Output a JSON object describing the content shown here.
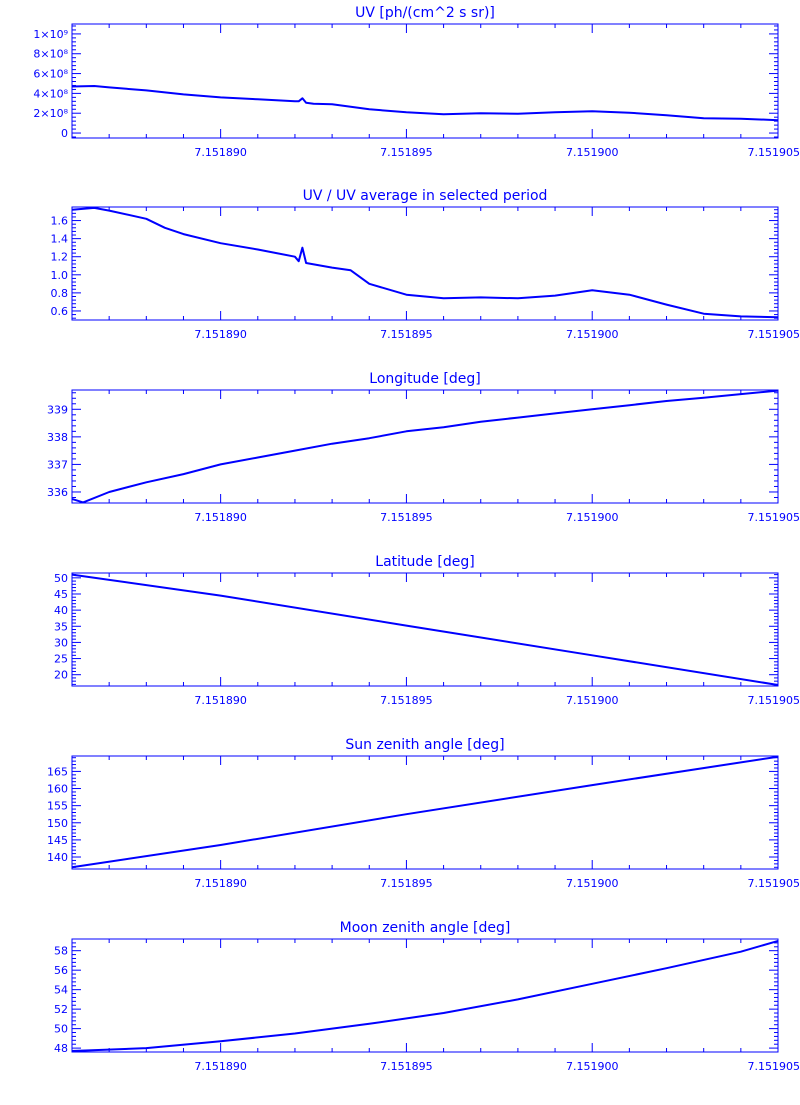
{
  "chart_data": [
    {
      "type": "line",
      "title": "UV [ph/(cm^2 s sr)]",
      "xlabel": "",
      "ylabel": "",
      "xlim": [
        7.151886,
        7.151905
      ],
      "ylim": [
        -50000000.0,
        1100000000.0
      ],
      "x_ticks": [
        7.15189,
        7.151895,
        7.1519,
        7.151905
      ],
      "x_tick_labels": [
        "7.151890",
        "7.151895",
        "7.151900",
        "7.151905"
      ],
      "y_ticks": [
        0,
        200000000.0,
        400000000.0,
        600000000.0,
        800000000.0,
        1000000000.0
      ],
      "y_tick_labels": [
        "0",
        "2×10⁸",
        "4×10⁸",
        "6×10⁸",
        "8×10⁸",
        "1×10⁹"
      ],
      "series": [
        {
          "x": [
            7.151886,
            7.1518866,
            7.151887,
            7.151888,
            7.151889,
            7.15189,
            7.151891,
            7.151892,
            7.1518921,
            7.1518922,
            7.1518923,
            7.1518925,
            7.151893,
            7.151894,
            7.151895,
            7.151896,
            7.151897,
            7.151898,
            7.151899,
            7.1519,
            7.151901,
            7.151902,
            7.151903,
            7.151904,
            7.151905
          ],
          "y": [
            470000000.0,
            475000000.0,
            460000000.0,
            430000000.0,
            390000000.0,
            360000000.0,
            340000000.0,
            320000000.0,
            320000000.0,
            350000000.0,
            305000000.0,
            295000000.0,
            290000000.0,
            240000000.0,
            210000000.0,
            190000000.0,
            200000000.0,
            195000000.0,
            210000000.0,
            220000000.0,
            205000000.0,
            180000000.0,
            150000000.0,
            145000000.0,
            130000000.0
          ]
        }
      ]
    },
    {
      "type": "line",
      "title": "UV / UV average in selected period",
      "xlabel": "",
      "ylabel": "",
      "xlim": [
        7.151886,
        7.151905
      ],
      "ylim": [
        0.5,
        1.75
      ],
      "x_ticks": [
        7.15189,
        7.151895,
        7.1519,
        7.151905
      ],
      "x_tick_labels": [
        "7.151890",
        "7.151895",
        "7.151900",
        "7.151905"
      ],
      "y_ticks": [
        0.6,
        0.8,
        1.0,
        1.2,
        1.4,
        1.6
      ],
      "y_tick_labels": [
        "0.6",
        "0.8",
        "1.0",
        "1.2",
        "1.4",
        "1.6"
      ],
      "series": [
        {
          "x": [
            7.151886,
            7.1518866,
            7.151887,
            7.151888,
            7.1518885,
            7.151889,
            7.15189,
            7.151891,
            7.151892,
            7.1518921,
            7.1518922,
            7.1518923,
            7.151893,
            7.1518935,
            7.151894,
            7.151895,
            7.151896,
            7.151897,
            7.151898,
            7.151899,
            7.1519,
            7.151901,
            7.151902,
            7.151903,
            7.151904,
            7.151905
          ],
          "y": [
            1.72,
            1.74,
            1.71,
            1.62,
            1.52,
            1.45,
            1.35,
            1.28,
            1.2,
            1.15,
            1.3,
            1.13,
            1.08,
            1.05,
            0.9,
            0.78,
            0.74,
            0.75,
            0.74,
            0.77,
            0.83,
            0.78,
            0.67,
            0.57,
            0.54,
            0.53
          ]
        }
      ]
    },
    {
      "type": "line",
      "title": "Longitude [deg]",
      "xlabel": "",
      "ylabel": "",
      "xlim": [
        7.151886,
        7.151905
      ],
      "ylim": [
        335.6,
        339.7
      ],
      "x_ticks": [
        7.15189,
        7.151895,
        7.1519,
        7.151905
      ],
      "x_tick_labels": [
        "7.151890",
        "7.151895",
        "7.151900",
        "7.151905"
      ],
      "y_ticks": [
        336,
        337,
        338,
        339
      ],
      "y_tick_labels": [
        "336",
        "337",
        "338",
        "339"
      ],
      "series": [
        {
          "x": [
            7.151886,
            7.1518863,
            7.151887,
            7.151888,
            7.151889,
            7.15189,
            7.151891,
            7.151892,
            7.151893,
            7.151894,
            7.151895,
            7.151896,
            7.151897,
            7.151898,
            7.151899,
            7.1519,
            7.151901,
            7.151902,
            7.151903,
            7.151904,
            7.151905
          ],
          "y": [
            335.75,
            335.62,
            336.0,
            336.35,
            336.65,
            337.0,
            337.25,
            337.5,
            337.75,
            337.95,
            338.2,
            338.35,
            338.55,
            338.7,
            338.85,
            339.0,
            339.15,
            339.3,
            339.42,
            339.55,
            339.68
          ]
        }
      ]
    },
    {
      "type": "line",
      "title": "Latitude [deg]",
      "xlabel": "",
      "ylabel": "",
      "xlim": [
        7.151886,
        7.151905
      ],
      "ylim": [
        16.5,
        51.5
      ],
      "x_ticks": [
        7.15189,
        7.151895,
        7.1519,
        7.151905
      ],
      "x_tick_labels": [
        "7.151890",
        "7.151895",
        "7.151900",
        "7.151905"
      ],
      "y_ticks": [
        20,
        25,
        30,
        35,
        40,
        45,
        50
      ],
      "y_tick_labels": [
        "20",
        "25",
        "30",
        "35",
        "40",
        "45",
        "50"
      ],
      "series": [
        {
          "x": [
            7.151886,
            7.15189,
            7.151895,
            7.1519,
            7.151905
          ],
          "y": [
            51.0,
            44.5,
            35.2,
            26.0,
            16.8
          ]
        }
      ]
    },
    {
      "type": "line",
      "title": "Sun zenith angle [deg]",
      "xlabel": "",
      "ylabel": "",
      "xlim": [
        7.151886,
        7.151905
      ],
      "ylim": [
        136.5,
        169.5
      ],
      "x_ticks": [
        7.15189,
        7.151895,
        7.1519,
        7.151905
      ],
      "x_tick_labels": [
        "7.151890",
        "7.151895",
        "7.151900",
        "7.151905"
      ],
      "y_ticks": [
        140,
        145,
        150,
        155,
        160,
        165
      ],
      "y_tick_labels": [
        "140",
        "145",
        "150",
        "155",
        "160",
        "165"
      ],
      "series": [
        {
          "x": [
            7.151886,
            7.15189,
            7.151895,
            7.1519,
            7.151905
          ],
          "y": [
            137.0,
            143.5,
            152.5,
            161.0,
            169.3
          ]
        }
      ]
    },
    {
      "type": "line",
      "title": "Moon zenith angle [deg]",
      "xlabel": "",
      "ylabel": "",
      "xlim": [
        7.151886,
        7.151905
      ],
      "ylim": [
        47.6,
        59.2
      ],
      "x_ticks": [
        7.15189,
        7.151895,
        7.1519,
        7.151905
      ],
      "x_tick_labels": [
        "7.151890",
        "7.151895",
        "7.151900",
        "7.151905"
      ],
      "y_ticks": [
        48,
        50,
        52,
        54,
        56,
        58
      ],
      "y_tick_labels": [
        "48",
        "50",
        "52",
        "54",
        "56",
        "58"
      ],
      "series": [
        {
          "x": [
            7.151886,
            7.151888,
            7.15189,
            7.151892,
            7.151894,
            7.151896,
            7.151898,
            7.1519,
            7.151902,
            7.151904,
            7.151905
          ],
          "y": [
            47.7,
            48.0,
            48.7,
            49.5,
            50.5,
            51.6,
            53.0,
            54.6,
            56.2,
            57.9,
            59.0
          ]
        }
      ]
    }
  ]
}
